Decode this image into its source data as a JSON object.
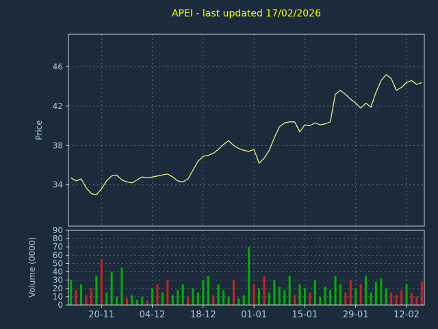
{
  "chart_data": {
    "type": "line",
    "title": "APEI - last updated 17/02/2026",
    "x_tick_labels": [
      "20-11",
      "04-12",
      "18-12",
      "01-01",
      "15-01",
      "29-01",
      "12-02"
    ],
    "x_tick_indices": [
      6,
      16,
      26,
      36,
      46,
      56,
      66
    ],
    "n_points": 70,
    "grid": "dashed",
    "legend": "none",
    "price_chart": {
      "ylabel": "Price",
      "ylim": [
        29.8,
        49.3
      ],
      "yticks": [
        34,
        38,
        42,
        46
      ],
      "series": [
        {
          "name": "APEI price",
          "values": [
            34.7,
            34.4,
            34.6,
            33.7,
            33.1,
            33.0,
            33.6,
            34.4,
            34.9,
            35.0,
            34.5,
            34.3,
            34.2,
            34.5,
            34.8,
            34.7,
            34.8,
            34.9,
            35.0,
            35.1,
            34.8,
            34.4,
            34.3,
            34.6,
            35.5,
            36.4,
            36.9,
            37.0,
            37.2,
            37.6,
            38.1,
            38.5,
            38.0,
            37.7,
            37.5,
            37.4,
            37.6,
            36.2,
            36.7,
            37.5,
            38.8,
            39.9,
            40.3,
            40.4,
            40.4,
            39.4,
            40.1,
            40.0,
            40.3,
            40.1,
            40.2,
            40.4,
            43.2,
            43.6,
            43.2,
            42.7,
            42.3,
            41.8,
            42.3,
            41.9,
            43.4,
            44.6,
            45.2,
            44.8,
            43.6,
            43.9,
            44.4,
            44.6,
            44.2,
            44.4
          ]
        }
      ]
    },
    "volume_chart": {
      "ylabel": "Volume (0000)",
      "ylim": [
        0,
        90
      ],
      "yticks": [
        0,
        10,
        20,
        30,
        40,
        50,
        60,
        70,
        80,
        90
      ],
      "values": [
        30,
        18,
        25,
        12,
        20,
        35,
        55,
        15,
        40,
        10,
        45,
        8,
        12,
        6,
        10,
        5,
        20,
        25,
        15,
        30,
        12,
        18,
        25,
        10,
        20,
        15,
        30,
        35,
        12,
        25,
        18,
        10,
        30,
        8,
        12,
        70,
        25,
        20,
        35,
        15,
        30,
        22,
        18,
        35,
        12,
        25,
        20,
        15,
        30,
        10,
        22,
        18,
        35,
        25,
        15,
        30,
        20,
        25,
        35,
        15,
        28,
        32,
        20,
        15,
        12,
        18,
        25,
        15,
        10,
        28
      ],
      "directions": [
        "u",
        "d",
        "u",
        "d",
        "d",
        "u",
        "d",
        "u",
        "u",
        "u",
        "u",
        "d",
        "u",
        "u",
        "u",
        "d",
        "u",
        "d",
        "u",
        "d",
        "u",
        "u",
        "u",
        "d",
        "u",
        "u",
        "u",
        "u",
        "d",
        "u",
        "u",
        "u",
        "d",
        "u",
        "u",
        "u",
        "d",
        "u",
        "d",
        "u",
        "u",
        "u",
        "u",
        "u",
        "d",
        "u",
        "u",
        "d",
        "u",
        "u",
        "u",
        "u",
        "u",
        "u",
        "d",
        "d",
        "u",
        "d",
        "u",
        "u",
        "u",
        "u",
        "u",
        "d",
        "d",
        "d",
        "u",
        "d",
        "d",
        "d"
      ]
    },
    "colors": {
      "background": "#1b2b3c",
      "title": "#ffff00",
      "axis_text": "#aec6dc",
      "grid": "#8fa5b8",
      "spine": "#c8d4de",
      "price_line": "#eded8a",
      "volume_up": "#00b000",
      "volume_down": "#cc2222"
    }
  }
}
